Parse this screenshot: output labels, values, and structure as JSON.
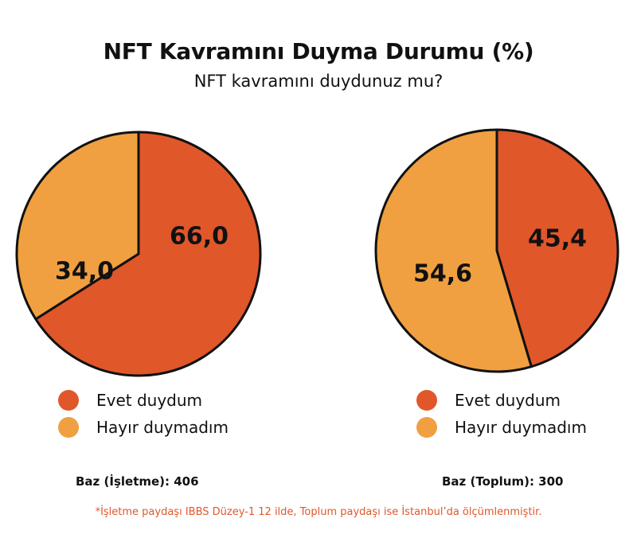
{
  "chart_data": [
    {
      "type": "pie",
      "categories": [
        "Evet duydum",
        "Hayır duymadım"
      ],
      "values": [
        66.0,
        34.0
      ],
      "value_labels": [
        "66,0",
        "34,0"
      ],
      "colors": [
        "#e0572a",
        "#f0a040"
      ],
      "base_note": "Baz (İşletme): 406"
    },
    {
      "type": "pie",
      "categories": [
        "Evet duydum",
        "Hayır duymadım"
      ],
      "values": [
        45.4,
        54.6
      ],
      "value_labels": [
        "45,4",
        "54,6"
      ],
      "colors": [
        "#e0572a",
        "#f0a040"
      ],
      "base_note": "Baz (Toplum): 300"
    }
  ],
  "title": "NFT Kavramını Duyma Durumu (%)",
  "subtitle": "NFT kavramını duydunuz mu?",
  "legend": {
    "items": [
      {
        "label": "Evet duydum",
        "color": "#e0572a"
      },
      {
        "label": "Hayır duymadım",
        "color": "#f0a040"
      }
    ]
  },
  "footnote": "*İşletme paydaşı IBBS Düzey-1 12 ilde, Toplum paydaşı ise İstanbul’da ölçümlenmiştir."
}
